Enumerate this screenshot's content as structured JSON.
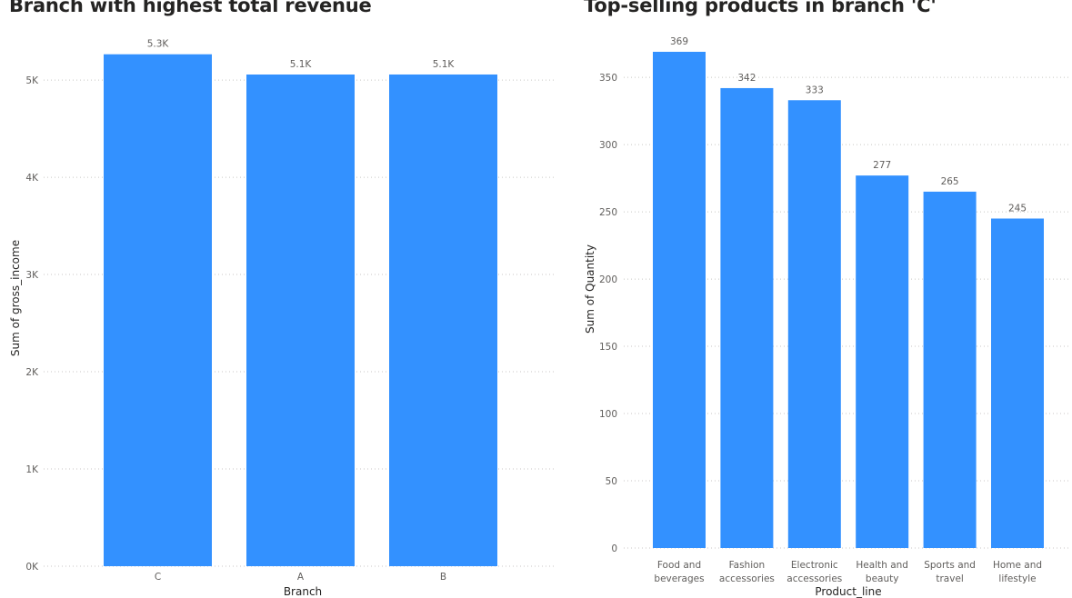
{
  "chart_data": [
    {
      "type": "bar",
      "title": "Branch with highest total revenue",
      "xlabel": "Branch",
      "ylabel": "Sum of gross_income",
      "categories": [
        "C",
        "A",
        "B"
      ],
      "values": [
        5265.18,
        5057.03,
        5057.16
      ],
      "data_labels": [
        "5.3K",
        "5.1K",
        "5.1K"
      ],
      "ylim": [
        0,
        5300
      ],
      "yticks": [
        0,
        1000,
        2000,
        3000,
        4000,
        5000
      ],
      "ytick_labels": [
        "0K",
        "1K",
        "2K",
        "3K",
        "4K",
        "5K"
      ],
      "grid": true,
      "color": "#3391FF"
    },
    {
      "type": "bar",
      "title": "Top-selling products in branch 'C'",
      "xlabel": "Product_line",
      "ylabel": "Sum of Quantity",
      "categories": [
        [
          "Food and",
          "beverages"
        ],
        [
          "Fashion",
          "accessories"
        ],
        [
          "Electronic",
          "accessories"
        ],
        [
          "Health and",
          "beauty"
        ],
        [
          "Sports and",
          "travel"
        ],
        [
          "Home and",
          "lifestyle"
        ]
      ],
      "values": [
        369,
        342,
        333,
        277,
        265,
        245
      ],
      "data_labels": [
        "369",
        "342",
        "333",
        "277",
        "265",
        "245"
      ],
      "ylim": [
        0,
        369
      ],
      "yticks": [
        0,
        50,
        100,
        150,
        200,
        250,
        300,
        350
      ],
      "ytick_labels": [
        "0",
        "50",
        "100",
        "150",
        "200",
        "250",
        "300",
        "350"
      ],
      "grid": true,
      "color": "#3391FF"
    }
  ]
}
